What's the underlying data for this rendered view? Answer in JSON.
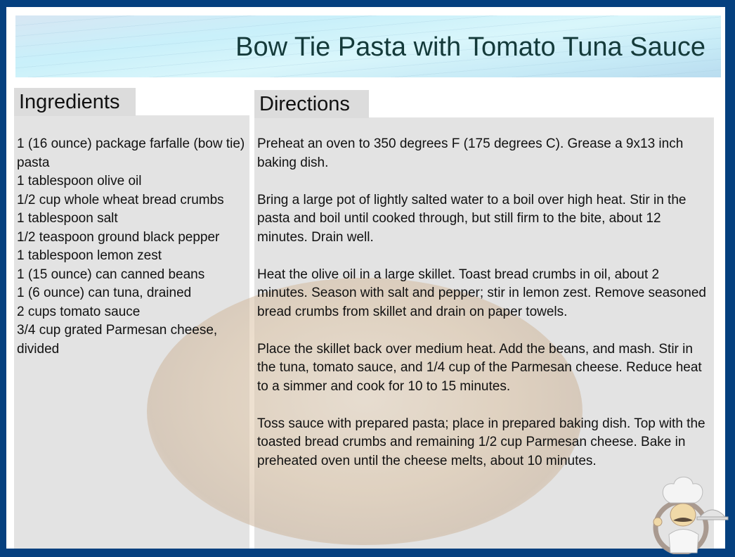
{
  "title": "Bow Tie Pasta with Tomato Tuna Sauce",
  "ingredients": {
    "heading": "Ingredients",
    "items": [
      "1 (16 ounce) package farfalle (bow tie) pasta",
      "1 tablespoon olive oil",
      "1/2 cup whole wheat bread crumbs",
      "1 tablespoon salt",
      "1/2 teaspoon ground black pepper",
      "1 tablespoon lemon zest",
      "1 (15 ounce) can canned beans",
      "1 (6 ounce) can tuna, drained",
      "2 cups tomato sauce",
      "3/4 cup grated Parmesan cheese, divided"
    ]
  },
  "directions": {
    "heading": "Directions",
    "steps": [
      "Preheat an oven to 350 degrees F (175 degrees C). Grease a 9x13 inch baking dish.",
      "Bring a large pot of lightly salted water to a boil over high heat. Stir in the pasta and boil until cooked through, but still firm to the bite, about 12 minutes. Drain well.",
      "Heat the olive oil in a large skillet. Toast bread crumbs in oil, about 2 minutes. Season with salt and pepper; stir in lemon zest. Remove seasoned bread crumbs from skillet and drain on paper towels.",
      "Place the skillet back over medium heat. Add the beans, and mash. Stir in the tuna, tomato sauce, and 1/4 cup of the Parmesan cheese. Reduce heat to a simmer and cook for 10 to 15 minutes.",
      "Toss sauce with prepared pasta; place in prepared baking dish. Top with the toasted bread crumbs and remaining 1/2 cup Parmesan cheese. Bake in preheated oven until the cheese melts, about 10 minutes."
    ]
  },
  "colors": {
    "border": "#05407f",
    "panel": "#dcdcdc",
    "title": "#143a3a"
  },
  "icons": {
    "chef": "chef-mascot-icon",
    "background": "bean-dish-photo"
  }
}
